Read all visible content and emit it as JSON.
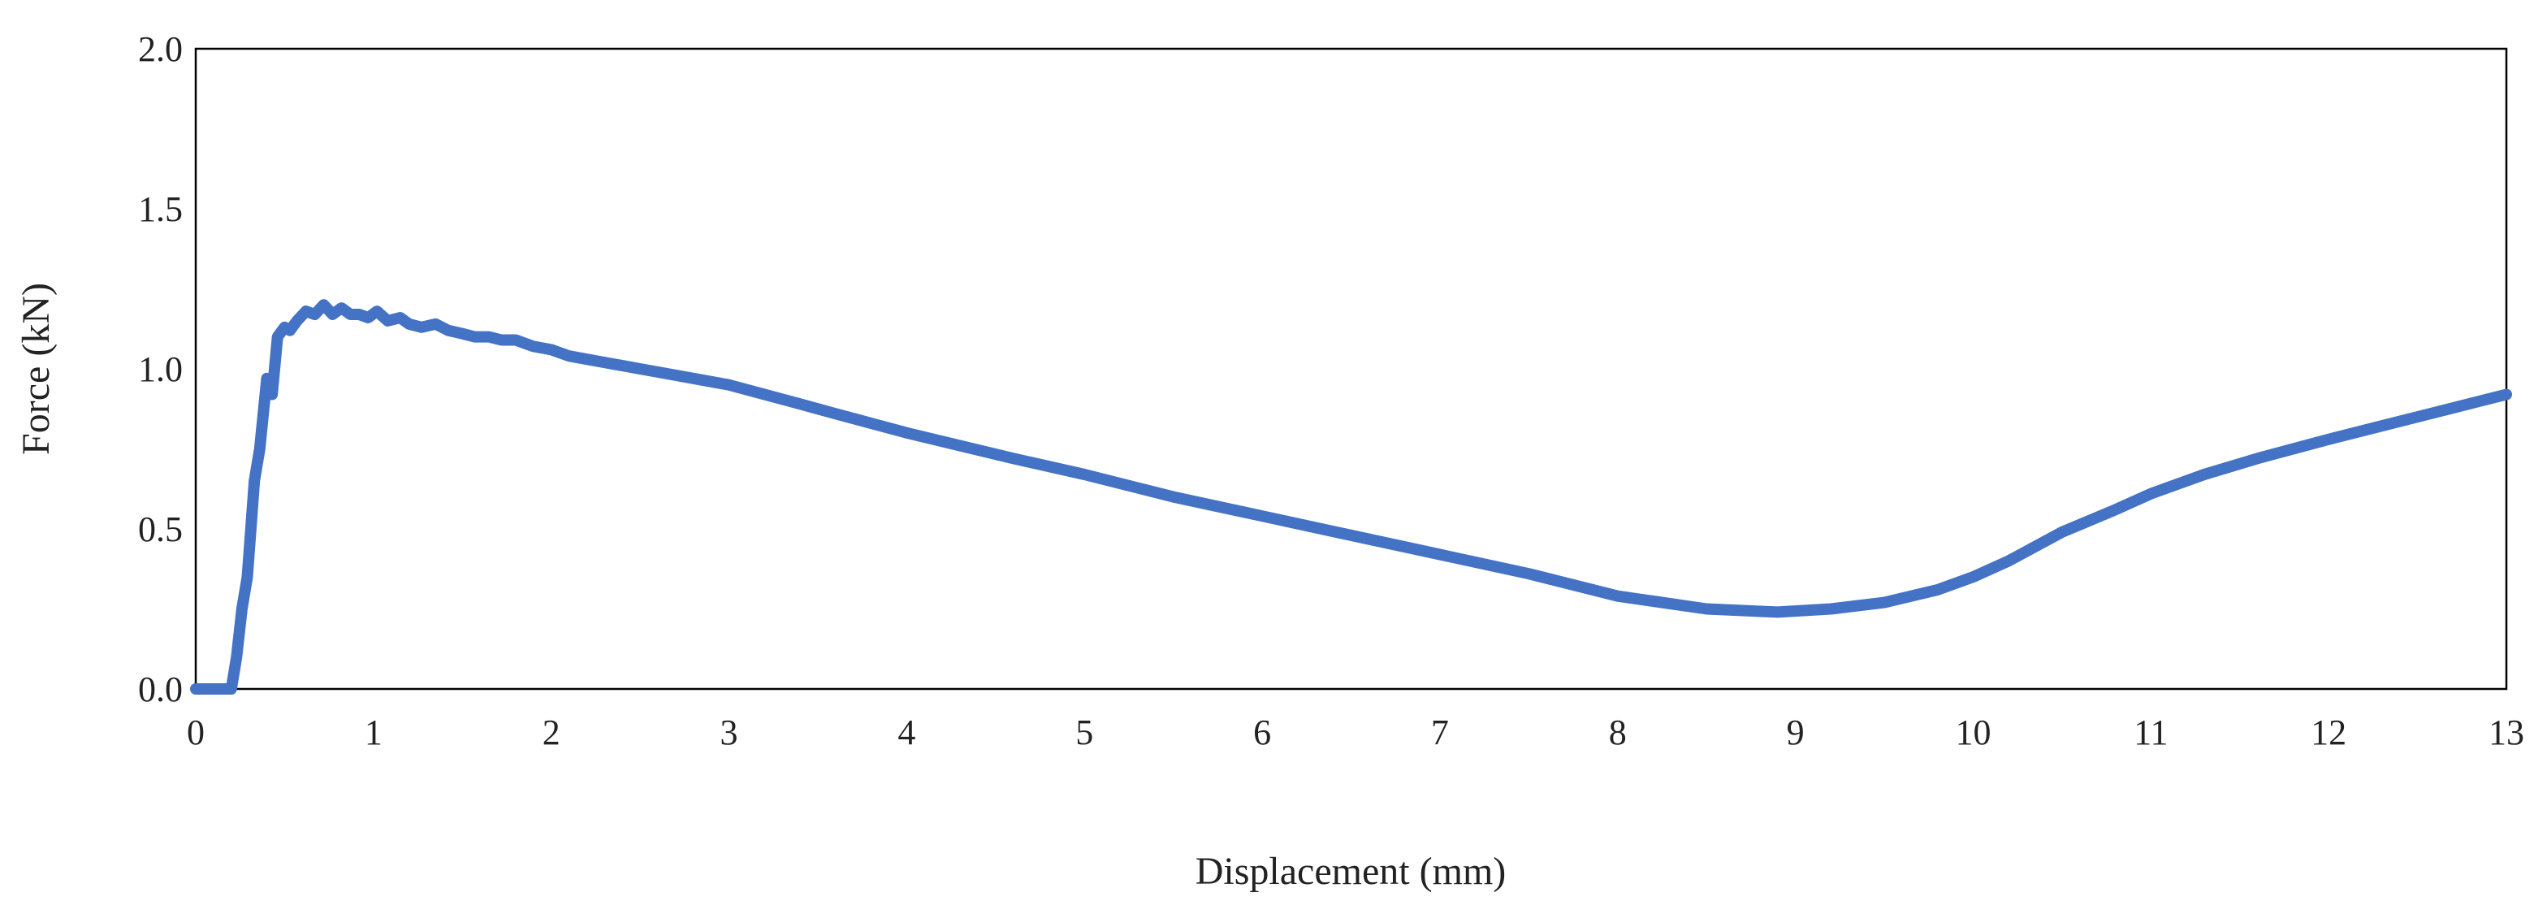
{
  "chart_data": {
    "type": "line",
    "title": "",
    "xlabel": "Displacement (mm)",
    "ylabel": "Force (kN)",
    "xlim": [
      0,
      13
    ],
    "ylim": [
      0,
      2.0
    ],
    "xticks": [
      "0",
      "1",
      "2",
      "3",
      "4",
      "5",
      "6",
      "7",
      "8",
      "9",
      "10",
      "11",
      "12",
      "13"
    ],
    "yticks": [
      "0.0",
      "0.5",
      "1.0",
      "1.5",
      "2.0"
    ],
    "grid": false,
    "legend": "none",
    "series": [
      {
        "color": "#4472C4",
        "x": [
          0,
          0.2,
          0.23,
          0.26,
          0.29,
          0.33,
          0.36,
          0.4,
          0.43,
          0.46,
          0.5,
          0.53,
          0.57,
          0.62,
          0.67,
          0.72,
          0.77,
          0.82,
          0.87,
          0.92,
          0.97,
          1.02,
          1.08,
          1.15,
          1.2,
          1.27,
          1.35,
          1.42,
          1.5,
          1.57,
          1.65,
          1.72,
          1.8,
          1.9,
          2.0,
          2.1,
          2.3,
          2.5,
          2.7,
          2.9,
          3.0,
          3.2,
          3.4,
          3.6,
          3.8,
          4.0,
          4.3,
          4.6,
          5.0,
          5.5,
          6.0,
          6.5,
          7.0,
          7.5,
          8.0,
          8.5,
          8.9,
          9.2,
          9.5,
          9.8,
          10.0,
          10.2,
          10.5,
          10.8,
          11.0,
          11.3,
          11.6,
          12.0,
          12.5,
          13.0
        ],
        "y": [
          0,
          0,
          0.1,
          0.25,
          0.35,
          0.65,
          0.75,
          0.97,
          0.92,
          1.1,
          1.13,
          1.12,
          1.15,
          1.18,
          1.17,
          1.2,
          1.17,
          1.19,
          1.17,
          1.17,
          1.16,
          1.18,
          1.15,
          1.16,
          1.14,
          1.13,
          1.14,
          1.12,
          1.11,
          1.1,
          1.1,
          1.09,
          1.09,
          1.07,
          1.06,
          1.04,
          1.02,
          1.0,
          0.98,
          0.96,
          0.95,
          0.92,
          0.89,
          0.86,
          0.83,
          0.8,
          0.76,
          0.72,
          0.67,
          0.6,
          0.54,
          0.48,
          0.42,
          0.36,
          0.29,
          0.25,
          0.24,
          0.25,
          0.27,
          0.31,
          0.35,
          0.4,
          0.49,
          0.56,
          0.61,
          0.67,
          0.72,
          0.78,
          0.85,
          0.92
        ]
      }
    ]
  }
}
